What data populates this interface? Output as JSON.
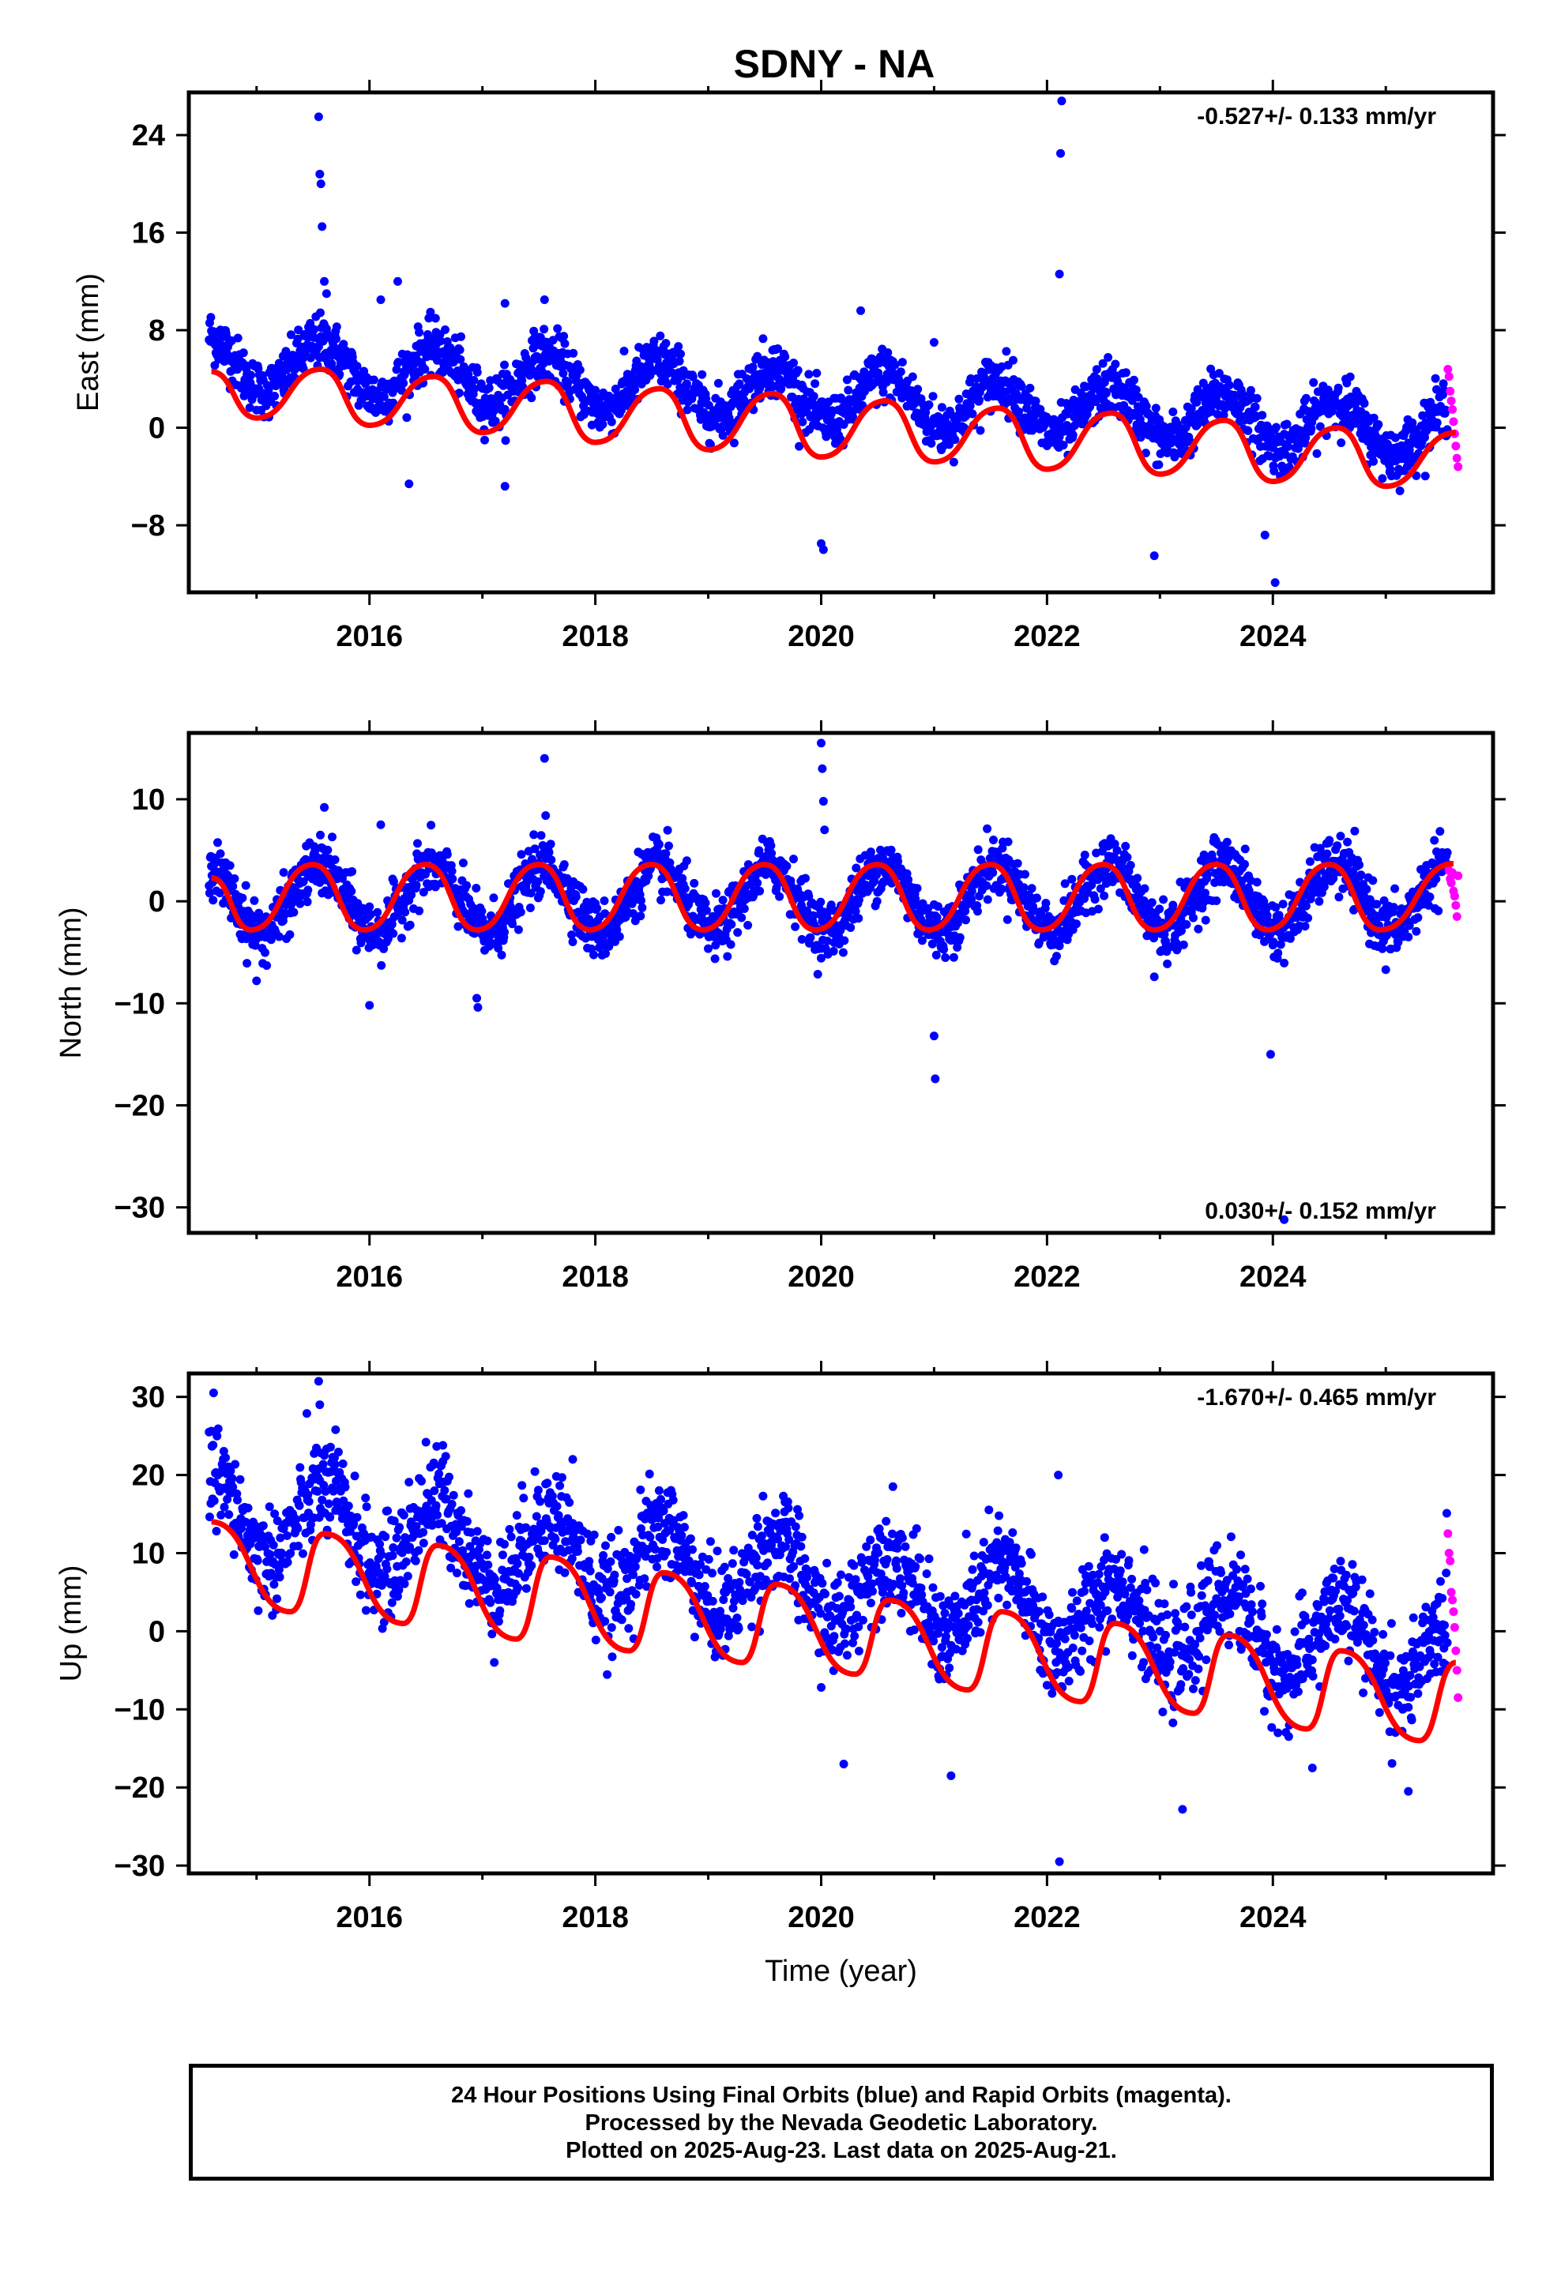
{
  "title": "SDNY - NA",
  "colors": {
    "final_orbits": "#0000ff",
    "rapid_orbits": "#ff00ff",
    "model_fit": "#ff0000"
  },
  "chart_data": [
    {
      "type": "scatter",
      "title": "SDNY - NA",
      "ylabel": "East (mm)",
      "xlabel": "",
      "rate_label": "-0.527+/- 0.133 mm/yr",
      "rate_position": "top-right",
      "xlim": [
        2014.4,
        2025.95
      ],
      "ylim": [
        -13.5,
        27.5
      ],
      "xticks": [
        2016,
        2018,
        2020,
        2022,
        2024
      ],
      "xtick_labels": [
        "2016",
        "2018",
        "2020",
        "2022",
        "2024"
      ],
      "yticks": [
        -8,
        0,
        8,
        16,
        24
      ],
      "ytick_labels": [
        "−8",
        "0",
        "8",
        "16",
        "24"
      ],
      "data_range": [
        2014.58,
        2025.64
      ],
      "rapid_start": 2025.55,
      "grid": false,
      "fit": {
        "rate": -0.527,
        "offset": 2.6,
        "amplitude": 2.1,
        "phase_peak": 0.57,
        "noise_sd": 1.1
      },
      "fit_curve": [
        [
          2014.6,
          4.6
        ],
        [
          2015.0,
          0.8
        ],
        [
          2015.57,
          4.8
        ],
        [
          2016.0,
          0.2
        ],
        [
          2016.57,
          4.2
        ],
        [
          2017.0,
          -0.4
        ],
        [
          2017.57,
          3.8
        ],
        [
          2018.0,
          -1.2
        ],
        [
          2018.57,
          3.2
        ],
        [
          2019.0,
          -1.8
        ],
        [
          2019.57,
          2.8
        ],
        [
          2020.0,
          -2.4
        ],
        [
          2020.57,
          2.2
        ],
        [
          2021.0,
          -2.8
        ],
        [
          2021.57,
          1.6
        ],
        [
          2022.0,
          -3.4
        ],
        [
          2022.57,
          1.2
        ],
        [
          2023.0,
          -3.8
        ],
        [
          2023.57,
          0.6
        ],
        [
          2024.0,
          -4.4
        ],
        [
          2024.57,
          0.0
        ],
        [
          2025.0,
          -4.8
        ],
        [
          2025.62,
          -0.4
        ]
      ],
      "outliers": [
        [
          2015.55,
          25.5
        ],
        [
          2015.56,
          20.8
        ],
        [
          2015.57,
          20.0
        ],
        [
          2015.58,
          16.5
        ],
        [
          2015.6,
          12.0
        ],
        [
          2015.62,
          11.0
        ],
        [
          2016.1,
          10.5
        ],
        [
          2016.25,
          12.0
        ],
        [
          2017.2,
          10.2
        ],
        [
          2017.55,
          10.5
        ],
        [
          2020.35,
          9.6
        ],
        [
          2021.0,
          7.0
        ],
        [
          2022.13,
          26.8
        ],
        [
          2022.12,
          22.5
        ],
        [
          2022.11,
          12.6
        ],
        [
          2020.0,
          -9.5
        ],
        [
          2020.02,
          -10.0
        ],
        [
          2022.95,
          -10.5
        ],
        [
          2024.02,
          -12.7
        ],
        [
          2023.93,
          -8.8
        ],
        [
          2015.85,
          5.8
        ],
        [
          2016.35,
          -4.6
        ],
        [
          2017.2,
          -4.8
        ]
      ],
      "rapid_points": [
        [
          2025.55,
          4.8
        ],
        [
          2025.56,
          4.2
        ],
        [
          2025.57,
          3.0
        ],
        [
          2025.58,
          2.2
        ],
        [
          2025.59,
          1.5
        ],
        [
          2025.6,
          0.5
        ],
        [
          2025.61,
          -0.5
        ],
        [
          2025.62,
          -1.5
        ],
        [
          2025.63,
          -2.5
        ],
        [
          2025.64,
          -3.2
        ]
      ]
    },
    {
      "type": "scatter",
      "ylabel": "North (mm)",
      "xlabel": "",
      "rate_label": "0.030+/- 0.152 mm/yr",
      "rate_position": "bottom-right",
      "xlim": [
        2014.4,
        2025.95
      ],
      "ylim": [
        -32.5,
        16.5
      ],
      "xticks": [
        2016,
        2018,
        2020,
        2022,
        2024
      ],
      "xtick_labels": [
        "2016",
        "2018",
        "2020",
        "2022",
        "2024"
      ],
      "yticks": [
        -30,
        -20,
        -10,
        0,
        10
      ],
      "ytick_labels": [
        "−30",
        "−20",
        "−10",
        "0",
        "10"
      ],
      "data_range": [
        2014.58,
        2025.64
      ],
      "rapid_start": 2025.55,
      "grid": false,
      "fit": {
        "rate": 0.03,
        "offset": 0.3,
        "amplitude": 3.2,
        "phase_peak": 0.55,
        "noise_sd": 1.4
      },
      "fit_curve": [
        [
          2014.6,
          2.3
        ],
        [
          2014.95,
          -2.8
        ],
        [
          2015.5,
          3.6
        ],
        [
          2015.95,
          -2.8
        ],
        [
          2016.5,
          3.6
        ],
        [
          2016.95,
          -2.8
        ],
        [
          2017.5,
          3.6
        ],
        [
          2017.95,
          -2.8
        ],
        [
          2018.5,
          3.6
        ],
        [
          2018.95,
          -2.8
        ],
        [
          2019.5,
          3.6
        ],
        [
          2019.95,
          -2.8
        ],
        [
          2020.5,
          3.6
        ],
        [
          2020.95,
          -2.8
        ],
        [
          2021.5,
          3.6
        ],
        [
          2021.95,
          -2.8
        ],
        [
          2022.5,
          3.6
        ],
        [
          2022.95,
          -2.8
        ],
        [
          2023.5,
          3.6
        ],
        [
          2023.95,
          -2.8
        ],
        [
          2024.5,
          3.6
        ],
        [
          2024.95,
          -2.8
        ],
        [
          2025.6,
          3.7
        ]
      ],
      "outliers": [
        [
          2020.0,
          15.5
        ],
        [
          2020.01,
          13.0
        ],
        [
          2020.02,
          9.8
        ],
        [
          2020.03,
          7.0
        ],
        [
          2017.55,
          14.0
        ],
        [
          2017.56,
          8.4
        ],
        [
          2015.6,
          9.2
        ],
        [
          2016.1,
          7.5
        ],
        [
          2015.0,
          -7.8
        ],
        [
          2016.0,
          -10.2
        ],
        [
          2016.95,
          -9.5
        ],
        [
          2016.96,
          -10.4
        ],
        [
          2021.0,
          -13.2
        ],
        [
          2021.01,
          -17.4
        ],
        [
          2023.98,
          -15.0
        ],
        [
          2024.1,
          -31.2
        ],
        [
          2022.95,
          -7.4
        ],
        [
          2025.0,
          -6.7
        ]
      ],
      "rapid_points": [
        [
          2025.55,
          3.5
        ],
        [
          2025.56,
          3.0
        ],
        [
          2025.57,
          2.2
        ],
        [
          2025.58,
          1.8
        ],
        [
          2025.59,
          2.8
        ],
        [
          2025.6,
          1.0
        ],
        [
          2025.61,
          0.5
        ],
        [
          2025.62,
          -0.4
        ],
        [
          2025.63,
          -1.5
        ],
        [
          2025.64,
          2.5
        ]
      ]
    },
    {
      "type": "scatter",
      "ylabel": "Up (mm)",
      "xlabel": "Time (year)",
      "rate_label": "-1.670+/- 0.465 mm/yr",
      "rate_position": "top-right",
      "xlim": [
        2014.4,
        2025.95
      ],
      "ylim": [
        -31,
        33
      ],
      "xticks": [
        2016,
        2018,
        2020,
        2022,
        2024
      ],
      "xtick_labels": [
        "2016",
        "2018",
        "2020",
        "2022",
        "2024"
      ],
      "yticks": [
        -30,
        -20,
        -10,
        0,
        10,
        20,
        30
      ],
      "ytick_labels": [
        "−30",
        "−20",
        "−10",
        "0",
        "10",
        "20",
        "30"
      ],
      "data_range": [
        2014.58,
        2025.64
      ],
      "rapid_start": 2025.55,
      "grid": false,
      "fit": {
        "rate": -1.67,
        "offset": 6.0,
        "amplitude": 5.0,
        "phase_peak": 0.6,
        "noise_sd": 3.2
      },
      "fit_curve": [
        [
          2014.6,
          14.0
        ],
        [
          2015.3,
          2.5
        ],
        [
          2015.6,
          12.5
        ],
        [
          2016.3,
          1.0
        ],
        [
          2016.6,
          11.0
        ],
        [
          2017.3,
          -1.0
        ],
        [
          2017.6,
          9.5
        ],
        [
          2018.3,
          -2.5
        ],
        [
          2018.6,
          7.5
        ],
        [
          2019.3,
          -4.0
        ],
        [
          2019.6,
          6.0
        ],
        [
          2020.3,
          -5.5
        ],
        [
          2020.6,
          4.0
        ],
        [
          2021.3,
          -7.5
        ],
        [
          2021.6,
          2.5
        ],
        [
          2022.3,
          -9.0
        ],
        [
          2022.6,
          1.0
        ],
        [
          2023.3,
          -10.5
        ],
        [
          2023.6,
          -0.5
        ],
        [
          2024.3,
          -12.5
        ],
        [
          2024.6,
          -2.5
        ],
        [
          2025.3,
          -14.0
        ],
        [
          2025.62,
          -4.0
        ]
      ],
      "outliers": [
        [
          2015.55,
          32.0
        ],
        [
          2015.56,
          29.0
        ],
        [
          2015.7,
          25.8
        ],
        [
          2016.5,
          24.2
        ],
        [
          2016.65,
          23.8
        ],
        [
          2017.8,
          22.0
        ],
        [
          2022.1,
          20.0
        ],
        [
          2022.11,
          -29.5
        ],
        [
          2023.2,
          -22.8
        ],
        [
          2021.15,
          -18.5
        ],
        [
          2020.2,
          -17.0
        ],
        [
          2024.35,
          -17.5
        ],
        [
          2025.2,
          -20.5
        ]
      ],
      "rapid_points": [
        [
          2025.55,
          12.5
        ],
        [
          2025.56,
          10.0
        ],
        [
          2025.57,
          9.0
        ],
        [
          2025.58,
          5.0
        ],
        [
          2025.59,
          4.0
        ],
        [
          2025.6,
          2.5
        ],
        [
          2025.61,
          0.5
        ],
        [
          2025.62,
          -2.5
        ],
        [
          2025.63,
          -5.0
        ],
        [
          2025.64,
          -8.5
        ]
      ]
    }
  ],
  "caption": {
    "line1": "24 Hour Positions Using Final Orbits (blue) and Rapid Orbits (magenta).",
    "line2": "Processed by the Nevada Geodetic Laboratory.",
    "line3": "Plotted on 2025-Aug-23. Last data on 2025-Aug-21."
  }
}
